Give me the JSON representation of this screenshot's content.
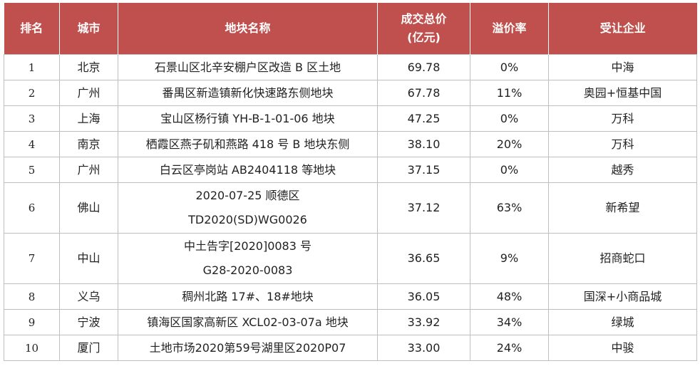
{
  "headers": {
    "rank": "排名",
    "city": "城市",
    "plot": "地块名称",
    "price_line1": "成交总价",
    "price_line2": "(亿元)",
    "premium": "溢价率",
    "buyer": "受让企业"
  },
  "rows": [
    {
      "rank": "1",
      "city": "北京",
      "plot": [
        "石景山区北辛安棚户区改造 B 区土地"
      ],
      "price": "69.78",
      "premium": "0%",
      "buyer": "中海"
    },
    {
      "rank": "2",
      "city": "广州",
      "plot": [
        "番禺区新造镇新化快速路东侧地块"
      ],
      "price": "67.78",
      "premium": "11%",
      "buyer": "奥园+恒基中国"
    },
    {
      "rank": "3",
      "city": "上海",
      "plot": [
        "宝山区杨行镇 YH-B-1-01-06 地块"
      ],
      "price": "47.25",
      "premium": "0%",
      "buyer": "万科"
    },
    {
      "rank": "4",
      "city": "南京",
      "plot": [
        "栖霞区燕子矶和燕路 418 号 B 地块东侧"
      ],
      "price": "38.10",
      "premium": "20%",
      "buyer": "万科"
    },
    {
      "rank": "5",
      "city": "广州",
      "plot": [
        "白云区亭岗站 AB2404118 等地块"
      ],
      "price": "37.15",
      "premium": "0%",
      "buyer": "越秀"
    },
    {
      "rank": "6",
      "city": "佛山",
      "plot": [
        "2020-07-25 顺德区",
        "TD2020(SD)WG0026"
      ],
      "price": "37.12",
      "premium": "63%",
      "buyer": "新希望"
    },
    {
      "rank": "7",
      "city": "中山",
      "plot": [
        "中土告字[2020]0083 号",
        "G28-2020-0083"
      ],
      "price": "36.65",
      "premium": "9%",
      "buyer": "招商蛇口"
    },
    {
      "rank": "8",
      "city": "义乌",
      "plot": [
        "稠州北路 17#、18#地块"
      ],
      "price": "36.05",
      "premium": "48%",
      "buyer": "国深+小商品城"
    },
    {
      "rank": "9",
      "city": "宁波",
      "plot": [
        "镇海区国家高新区 XCL02-03-07a 地块"
      ],
      "price": "33.92",
      "premium": "34%",
      "buyer": "绿城"
    },
    {
      "rank": "10",
      "city": "厦门",
      "plot": [
        "土地市场2020第59号湖里区2020P07"
      ],
      "price": "33.00",
      "premium": "24%",
      "buyer": "中骏"
    }
  ]
}
